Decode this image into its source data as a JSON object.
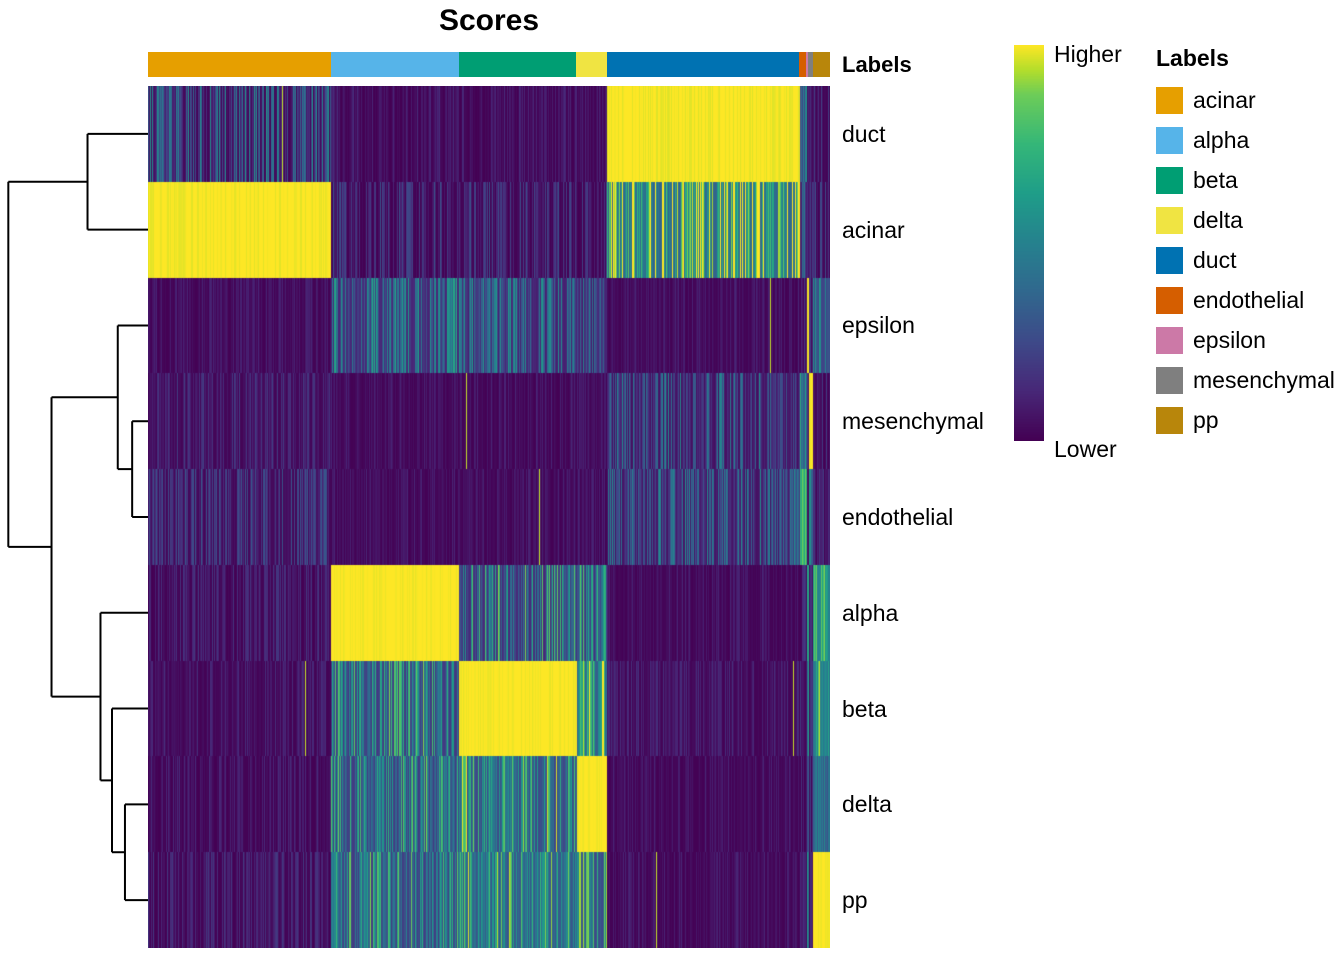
{
  "chart_data": {
    "type": "heatmap",
    "title": "Scores",
    "colormap": "viridis",
    "score_encoding": "block_scores[row][column_group] = [mean_score, streak_spread] on a 0-1 Lower-to-Higher scale; heatmap shows per-cell scores with vertical streak noise",
    "colorbar": {
      "high_label": "Higher",
      "low_label": "Lower"
    },
    "rows": [
      "duct",
      "acinar",
      "epsilon",
      "mesenchymal",
      "endothelial",
      "alpha",
      "beta",
      "delta",
      "pp"
    ],
    "column_annotation": {
      "title": "Labels",
      "groups": [
        {
          "label": "acinar",
          "color": "#E69F00",
          "fraction": 0.268
        },
        {
          "label": "alpha",
          "color": "#56B4E9",
          "fraction": 0.188
        },
        {
          "label": "beta",
          "color": "#009E73",
          "fraction": 0.172
        },
        {
          "label": "delta",
          "color": "#F0E442",
          "fraction": 0.045
        },
        {
          "label": "duct",
          "color": "#0072B2",
          "fraction": 0.282
        },
        {
          "label": "endothelial",
          "color": "#D55E00",
          "fraction": 0.01
        },
        {
          "label": "epsilon",
          "color": "#CC79A7",
          "fraction": 0.003
        },
        {
          "label": "mesenchymal",
          "color": "#7F7F7F",
          "fraction": 0.007
        },
        {
          "label": "pp",
          "color": "#B8860B",
          "fraction": 0.025
        }
      ]
    },
    "legend": {
      "title": "Labels"
    },
    "block_scores": {
      "duct": {
        "acinar": [
          0.1,
          0.6
        ],
        "alpha": [
          0.02,
          0.15
        ],
        "beta": [
          0.02,
          0.15
        ],
        "delta": [
          0.02,
          0.15
        ],
        "duct": [
          1.0,
          0.18
        ],
        "endothelial": [
          0.3,
          0.5
        ],
        "epsilon": [
          0.05,
          0.2
        ],
        "mesenchymal": [
          0.05,
          0.2
        ],
        "pp": [
          0.04,
          0.25
        ]
      },
      "acinar": {
        "acinar": [
          1.0,
          0.15
        ],
        "alpha": [
          0.04,
          0.3
        ],
        "beta": [
          0.04,
          0.3
        ],
        "delta": [
          0.04,
          0.3
        ],
        "duct": [
          0.5,
          0.95
        ],
        "endothelial": [
          0.15,
          0.4
        ],
        "epsilon": [
          0.05,
          0.2
        ],
        "mesenchymal": [
          0.05,
          0.2
        ],
        "pp": [
          0.05,
          0.3
        ]
      },
      "epsilon": {
        "acinar": [
          0.02,
          0.12
        ],
        "alpha": [
          0.2,
          0.55
        ],
        "beta": [
          0.17,
          0.5
        ],
        "delta": [
          0.15,
          0.5
        ],
        "duct": [
          0.02,
          0.12
        ],
        "endothelial": [
          0.02,
          0.2
        ],
        "epsilon": [
          1.0,
          0.1
        ],
        "mesenchymal": [
          0.05,
          0.2
        ],
        "pp": [
          0.3,
          0.45
        ]
      },
      "mesenchymal": {
        "acinar": [
          0.04,
          0.2
        ],
        "alpha": [
          0.02,
          0.12
        ],
        "beta": [
          0.02,
          0.12
        ],
        "delta": [
          0.02,
          0.12
        ],
        "duct": [
          0.12,
          0.5
        ],
        "endothelial": [
          0.35,
          0.5
        ],
        "epsilon": [
          0.05,
          0.2
        ],
        "mesenchymal": [
          1.0,
          0.1
        ],
        "pp": [
          0.03,
          0.2
        ]
      },
      "endothelial": {
        "acinar": [
          0.06,
          0.3
        ],
        "alpha": [
          0.02,
          0.12
        ],
        "beta": [
          0.02,
          0.12
        ],
        "delta": [
          0.02,
          0.12
        ],
        "duct": [
          0.13,
          0.5
        ],
        "endothelial": [
          0.7,
          0.3
        ],
        "epsilon": [
          0.05,
          0.2
        ],
        "mesenchymal": [
          0.4,
          0.4
        ],
        "pp": [
          0.03,
          0.2
        ]
      },
      "alpha": {
        "acinar": [
          0.03,
          0.2
        ],
        "alpha": [
          1.0,
          0.12
        ],
        "beta": [
          0.25,
          0.8
        ],
        "delta": [
          0.25,
          0.7
        ],
        "duct": [
          0.02,
          0.12
        ],
        "endothelial": [
          0.03,
          0.2
        ],
        "epsilon": [
          0.5,
          0.4
        ],
        "mesenchymal": [
          0.03,
          0.2
        ],
        "pp": [
          0.55,
          0.4
        ]
      },
      "beta": {
        "acinar": [
          0.03,
          0.15
        ],
        "alpha": [
          0.3,
          0.75
        ],
        "beta": [
          1.0,
          0.12
        ],
        "delta": [
          0.45,
          0.8
        ],
        "duct": [
          0.03,
          0.15
        ],
        "endothelial": [
          0.03,
          0.2
        ],
        "epsilon": [
          0.4,
          0.4
        ],
        "mesenchymal": [
          0.03,
          0.2
        ],
        "pp": [
          0.5,
          0.4
        ]
      },
      "delta": {
        "acinar": [
          0.02,
          0.15
        ],
        "alpha": [
          0.3,
          0.7
        ],
        "beta": [
          0.35,
          0.75
        ],
        "delta": [
          1.0,
          0.1
        ],
        "duct": [
          0.02,
          0.12
        ],
        "endothelial": [
          0.02,
          0.2
        ],
        "epsilon": [
          0.3,
          0.4
        ],
        "mesenchymal": [
          0.03,
          0.2
        ],
        "pp": [
          0.35,
          0.4
        ]
      },
      "pp": {
        "acinar": [
          0.03,
          0.2
        ],
        "alpha": [
          0.3,
          0.7
        ],
        "beta": [
          0.4,
          0.7
        ],
        "delta": [
          0.35,
          0.7
        ],
        "duct": [
          0.02,
          0.12
        ],
        "endothelial": [
          0.02,
          0.2
        ],
        "epsilon": [
          0.3,
          0.4
        ],
        "mesenchymal": [
          0.03,
          0.2
        ],
        "pp": [
          1.0,
          0.1
        ]
      }
    },
    "dendrogram": {
      "merges": [
        {
          "id": "m1",
          "a": "duct",
          "b": "acinar",
          "h": 0.42
        },
        {
          "id": "m2",
          "a": "mesenchymal",
          "b": "endothelial",
          "h": 0.11
        },
        {
          "id": "m3",
          "a": "epsilon",
          "b": "m2",
          "h": 0.21
        },
        {
          "id": "m4",
          "a": "delta",
          "b": "pp",
          "h": 0.16
        },
        {
          "id": "m5",
          "a": "beta",
          "b": "m4",
          "h": 0.25
        },
        {
          "id": "m6",
          "a": "alpha",
          "b": "m5",
          "h": 0.33
        },
        {
          "id": "m7",
          "a": "m3",
          "b": "m6",
          "h": 0.67
        },
        {
          "id": "m8",
          "a": "m1",
          "b": "m7",
          "h": 0.97
        }
      ]
    }
  }
}
